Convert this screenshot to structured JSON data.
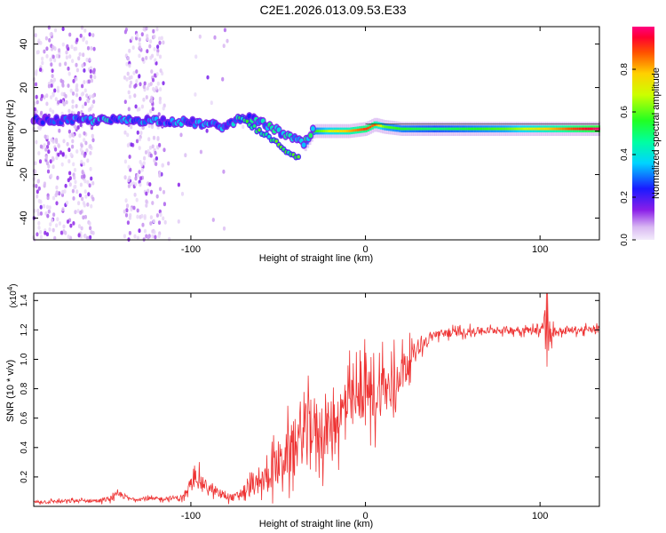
{
  "page_title": "C2E1.2026.013.09.53.E33",
  "chart_data": [
    {
      "type": "heatmap",
      "title": "C2E1.2026.013.09.53.E33",
      "xlabel": "Height of straight line (km)",
      "ylabel": "Frequency (Hz)",
      "xlim": [
        -190,
        134
      ],
      "ylim": [
        -50,
        48
      ],
      "x_ticks": [
        -100,
        0,
        100
      ],
      "x_tick_labels": [
        "-100",
        "0",
        "100"
      ],
      "y_ticks": [
        -40,
        -20,
        0,
        20,
        40
      ],
      "y_tick_labels": [
        "-40",
        "-20",
        "0",
        "20",
        "40"
      ],
      "colorbar": {
        "label": "Normalized spectral amplitude",
        "range": [
          0,
          1
        ],
        "ticks": [
          0.0,
          0.2,
          0.4,
          0.6,
          0.8
        ],
        "tick_labels": [
          "0.0",
          "0.2",
          "0.4",
          "0.6",
          "0.8"
        ]
      },
      "ridge": {
        "height_km": [
          -190,
          -150,
          -120,
          -100,
          -80,
          -70,
          -60,
          -50,
          -40,
          -35,
          -30,
          -20,
          -10,
          0,
          5,
          10,
          20,
          40,
          60,
          80,
          100,
          120,
          134
        ],
        "frequency_hz": [
          5,
          5,
          5,
          4,
          2,
          7,
          4,
          0,
          -4,
          -6,
          0,
          0,
          0,
          1,
          3,
          2,
          1,
          1,
          1,
          1,
          1,
          1,
          1
        ],
        "amplitude": [
          0.2,
          0.35,
          0.3,
          0.3,
          0.3,
          0.35,
          0.4,
          0.4,
          0.4,
          0.5,
          0.55,
          0.7,
          0.8,
          0.9,
          0.85,
          0.6,
          0.55,
          0.5,
          0.55,
          0.6,
          0.75,
          0.9,
          1.0
        ]
      }
    },
    {
      "type": "line",
      "xlabel": "Height of straight line (km)",
      "ylabel": "SNR (10 * v/v)",
      "y_multiplier": "(x10",
      "y_exponent": "4",
      "y_multiplier_close": ")",
      "xlim": [
        -190,
        134
      ],
      "ylim": [
        0,
        1.45
      ],
      "x_ticks": [
        -100,
        0,
        100
      ],
      "x_tick_labels": [
        "-100",
        "0",
        "100"
      ],
      "y_ticks": [
        0.2,
        0.4,
        0.6,
        0.8,
        1.0,
        1.2,
        1.4
      ],
      "y_tick_labels": [
        "0.2",
        "0.4",
        "0.6",
        "0.8",
        "1.0",
        "1.2",
        "1.4"
      ],
      "series": [
        {
          "name": "SNR",
          "color": "#ee3333",
          "x": [
            -190,
            -150,
            -140,
            -135,
            -120,
            -105,
            -100,
            -97,
            -92,
            -85,
            -80,
            -75,
            -70,
            -60,
            -50,
            -45,
            -40,
            -35,
            -30,
            -25,
            -20,
            -15,
            -10,
            -5,
            0,
            5,
            10,
            15,
            20,
            30,
            40,
            60,
            80,
            100,
            104,
            106,
            110,
            120,
            134
          ],
          "y": [
            0.03,
            0.04,
            0.08,
            0.05,
            0.05,
            0.06,
            0.12,
            0.22,
            0.14,
            0.09,
            0.07,
            0.06,
            0.1,
            0.16,
            0.28,
            0.35,
            0.42,
            0.5,
            0.56,
            0.48,
            0.55,
            0.62,
            0.68,
            0.7,
            0.8,
            0.72,
            0.82,
            0.78,
            0.92,
            1.08,
            1.17,
            1.19,
            1.2,
            1.2,
            1.25,
            1.18,
            1.19,
            1.2,
            1.2
          ],
          "noise": [
            0.02,
            0.02,
            0.04,
            0.02,
            0.02,
            0.03,
            0.06,
            0.1,
            0.06,
            0.04,
            0.04,
            0.04,
            0.08,
            0.12,
            0.22,
            0.26,
            0.3,
            0.32,
            0.35,
            0.3,
            0.3,
            0.3,
            0.3,
            0.3,
            0.3,
            0.28,
            0.3,
            0.3,
            0.2,
            0.08,
            0.05,
            0.04,
            0.04,
            0.04,
            0.3,
            0.1,
            0.04,
            0.04,
            0.04
          ]
        }
      ]
    }
  ]
}
